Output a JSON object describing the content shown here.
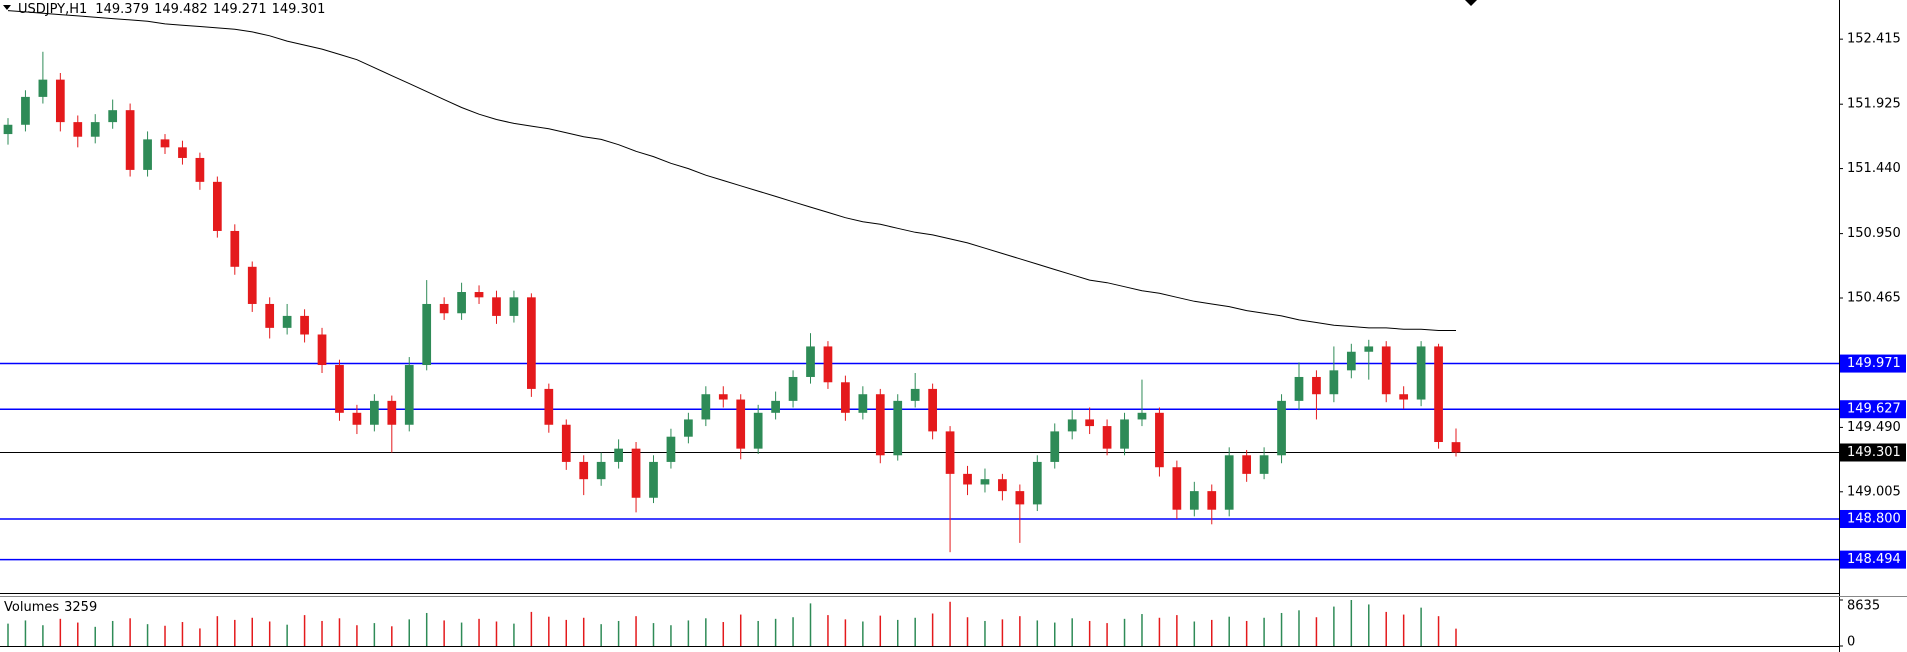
{
  "chart_data": {
    "type": "candlestick",
    "title": "USDJPY,H1",
    "up_color": "#2e8b57",
    "down_color": "#e41a1c",
    "ylim": [
      148.25,
      152.71
    ],
    "yticks": [
      152.415,
      151.925,
      {
        "value": 151.44,
        "label": "151.440"
      },
      {
        "value": 150.95,
        "label": "150.950"
      },
      150.465,
      {
        "value": 149.49,
        "label": "149.490"
      },
      149.005
    ],
    "open": [
      151.7,
      151.77,
      151.98,
      152.11,
      151.79,
      151.68,
      151.79,
      151.88,
      151.43,
      151.66,
      151.6,
      151.52,
      151.34,
      150.97,
      150.7,
      150.42,
      150.24,
      150.33,
      150.19,
      149.96,
      149.6,
      149.51,
      149.69,
      149.51,
      149.96,
      150.42,
      150.35,
      150.51,
      150.47,
      150.33,
      150.47,
      149.78,
      149.51,
      149.23,
      149.1,
      149.23,
      149.33,
      148.96,
      149.23,
      149.42,
      149.55,
      149.74,
      149.7,
      149.33,
      149.6,
      149.69,
      149.87,
      150.1,
      149.83,
      149.6,
      149.74,
      149.28,
      149.69,
      149.78,
      149.46,
      149.14,
      149.06,
      149.1,
      149.01,
      148.91,
      149.23,
      149.46,
      149.55,
      149.5,
      149.33,
      149.55,
      149.6,
      149.19,
      148.87,
      149.01,
      148.87,
      149.28,
      149.14,
      149.28,
      149.69,
      149.87,
      149.74,
      149.92,
      150.06,
      150.1,
      149.74,
      149.7,
      150.1,
      149.379
    ],
    "high": [
      151.82,
      152.03,
      152.32,
      152.16,
      151.84,
      151.85,
      151.96,
      151.93,
      151.72,
      151.7,
      151.65,
      151.56,
      151.38,
      151.02,
      150.74,
      150.47,
      150.42,
      150.38,
      150.24,
      150.0,
      149.66,
      149.74,
      149.73,
      150.02,
      150.6,
      150.47,
      150.58,
      150.56,
      150.52,
      150.52,
      150.5,
      149.82,
      149.55,
      149.28,
      149.3,
      149.4,
      149.38,
      149.28,
      149.48,
      149.6,
      149.8,
      149.8,
      149.74,
      149.66,
      149.76,
      149.92,
      150.2,
      150.14,
      149.88,
      149.8,
      149.78,
      149.74,
      149.9,
      149.82,
      149.5,
      149.2,
      149.18,
      149.14,
      149.06,
      149.28,
      149.52,
      149.62,
      149.64,
      149.55,
      149.6,
      149.85,
      149.64,
      149.24,
      149.08,
      149.06,
      149.34,
      149.32,
      149.34,
      149.74,
      149.98,
      149.92,
      150.1,
      150.12,
      150.15,
      150.14,
      149.8,
      150.14,
      150.12,
      149.482
    ],
    "low": [
      151.62,
      151.72,
      151.93,
      151.72,
      151.6,
      151.63,
      151.74,
      151.38,
      151.38,
      151.55,
      151.47,
      151.28,
      150.92,
      150.64,
      150.36,
      150.16,
      150.19,
      150.13,
      149.9,
      149.54,
      149.44,
      149.46,
      149.3,
      149.46,
      149.92,
      150.3,
      150.3,
      150.42,
      150.27,
      150.28,
      149.72,
      149.45,
      149.17,
      148.98,
      149.05,
      149.18,
      148.85,
      148.92,
      149.18,
      149.37,
      149.5,
      149.64,
      149.25,
      149.29,
      149.55,
      149.64,
      149.82,
      149.78,
      149.54,
      149.55,
      149.22,
      149.24,
      149.64,
      149.4,
      148.55,
      148.98,
      149.0,
      148.94,
      148.62,
      148.86,
      149.18,
      149.4,
      149.44,
      149.28,
      149.28,
      149.5,
      149.12,
      148.8,
      148.82,
      148.76,
      148.82,
      149.08,
      149.1,
      149.22,
      149.62,
      149.55,
      149.68,
      149.86,
      149.85,
      149.68,
      149.63,
      149.65,
      149.33,
      149.271
    ],
    "close": [
      151.77,
      151.98,
      152.11,
      151.79,
      151.68,
      151.79,
      151.88,
      151.43,
      151.66,
      151.6,
      151.52,
      151.34,
      150.97,
      150.7,
      150.42,
      150.24,
      150.33,
      150.19,
      149.96,
      149.6,
      149.51,
      149.69,
      149.51,
      149.96,
      150.42,
      150.35,
      150.51,
      150.47,
      150.33,
      150.47,
      149.78,
      149.51,
      149.23,
      149.1,
      149.23,
      149.33,
      148.96,
      149.23,
      149.42,
      149.55,
      149.74,
      149.7,
      149.33,
      149.6,
      149.69,
      149.87,
      150.1,
      149.83,
      149.6,
      149.74,
      149.28,
      149.69,
      149.78,
      149.46,
      149.14,
      149.06,
      149.1,
      149.01,
      148.91,
      149.23,
      149.46,
      149.55,
      149.5,
      149.33,
      149.55,
      149.6,
      149.19,
      148.87,
      149.01,
      148.87,
      149.28,
      149.14,
      149.28,
      149.69,
      149.87,
      149.74,
      149.92,
      150.06,
      150.1,
      149.74,
      149.7,
      150.1,
      149.38,
      149.301
    ],
    "ma": {
      "color": "#000000",
      "values": [
        152.63,
        152.62,
        152.61,
        152.6,
        152.59,
        152.58,
        152.57,
        152.56,
        152.55,
        152.53,
        152.52,
        152.51,
        152.5,
        152.49,
        152.47,
        152.44,
        152.4,
        152.37,
        152.34,
        152.3,
        152.26,
        152.2,
        152.14,
        152.08,
        152.02,
        151.96,
        151.9,
        151.85,
        151.81,
        151.78,
        151.76,
        151.74,
        151.71,
        151.68,
        151.66,
        151.62,
        151.57,
        151.53,
        151.48,
        151.44,
        151.39,
        151.35,
        151.31,
        151.27,
        151.23,
        151.19,
        151.15,
        151.11,
        151.07,
        151.04,
        151.02,
        150.99,
        150.96,
        150.94,
        150.91,
        150.88,
        150.84,
        150.8,
        150.76,
        150.72,
        150.68,
        150.64,
        150.6,
        150.58,
        150.55,
        150.52,
        150.5,
        150.47,
        150.44,
        150.42,
        150.4,
        150.37,
        150.35,
        150.33,
        150.3,
        150.28,
        150.26,
        150.25,
        150.24,
        150.24,
        150.23,
        150.23,
        150.22,
        150.22
      ]
    },
    "levels": [
      {
        "value": 149.971,
        "color": "#0000ff"
      },
      {
        "value": 149.627,
        "color": "#0000ff"
      },
      {
        "value": 148.8,
        "label": "148.800",
        "color": "#0000ff"
      },
      {
        "value": 148.494,
        "color": "#0000ff"
      }
    ],
    "price_line_color": "#000000",
    "volume": {
      "name": "Volumes",
      "ylim": [
        0,
        8635
      ],
      "yticks": [
        0,
        8635
      ],
      "values": [
        4200,
        4800,
        3900,
        5100,
        4400,
        3600,
        4700,
        5200,
        4100,
        3800,
        4500,
        3300,
        5600,
        4900,
        5300,
        4600,
        4000,
        5800,
        4700,
        5200,
        3900,
        4300,
        3700,
        5000,
        6200,
        4800,
        4400,
        5100,
        4600,
        4200,
        6400,
        5500,
        4900,
        5300,
        4100,
        4700,
        5600,
        4300,
        3900,
        4800,
        5200,
        4500,
        5900,
        4700,
        5100,
        5400,
        8000,
        5800,
        5000,
        4600,
        5700,
        4900,
        5300,
        6100,
        8300,
        5400,
        4700,
        5000,
        5600,
        4800,
        4400,
        5200,
        4700,
        4300,
        5100,
        6000,
        5300,
        5800,
        4600,
        4900,
        5500,
        4700,
        5300,
        6200,
        6700,
        5400,
        7400,
        8635,
        7800,
        6400,
        5900,
        7200,
        5600,
        3259
      ]
    }
  }
}
